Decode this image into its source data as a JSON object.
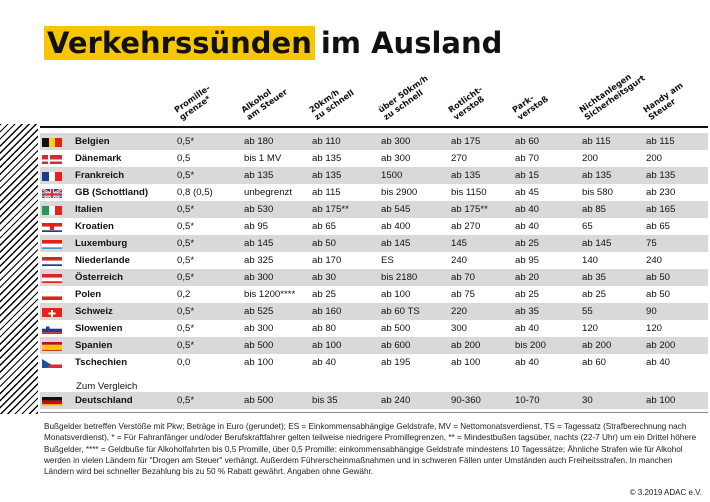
{
  "title": {
    "highlight": "Verkehrssünden",
    "rest": "im Ausland"
  },
  "columns": [
    "Promille-\ngrenze*",
    "Alkohol\nam Steuer",
    "20km/h\nzu schnell",
    "über 50km/h\nzu schnell",
    "Rotlicht-\nverstoß",
    "Park-\nverstoß",
    "Nichtanlegen\nSicherheitsgurt",
    "Handy am\nSteuer"
  ],
  "rows": [
    {
      "country": "Belgien",
      "flag": "be",
      "values": [
        "0,5*",
        "ab 180",
        "ab 110",
        "ab 300",
        "ab 175",
        "ab 60",
        "ab 115",
        "ab 115"
      ]
    },
    {
      "country": "Dänemark",
      "flag": "dk",
      "values": [
        "0,5",
        "bis 1 MV",
        "ab 135",
        "ab 300",
        "270",
        "ab 70",
        "200",
        "200"
      ]
    },
    {
      "country": "Frankreich",
      "flag": "fr",
      "values": [
        "0,5*",
        "ab 135",
        "ab 135",
        "1500",
        "ab 135",
        "ab 15",
        "ab 135",
        "ab 135"
      ]
    },
    {
      "country": "GB (Schottland)",
      "flag": "gb",
      "values": [
        "0,8 (0,5)",
        "unbegrenzt",
        "ab 115",
        "bis 2900",
        "bis 1150",
        "ab 45",
        "bis 580",
        "ab 230"
      ]
    },
    {
      "country": "Italien",
      "flag": "it",
      "values": [
        "0,5*",
        "ab 530",
        "ab 175**",
        "ab 545",
        "ab 175**",
        "ab 40",
        "ab 85",
        "ab 165"
      ]
    },
    {
      "country": "Kroatien",
      "flag": "hr",
      "values": [
        "0,5*",
        "ab 95",
        "ab 65",
        "ab 400",
        "ab 270",
        "ab 40",
        "65",
        "ab 65"
      ]
    },
    {
      "country": "Luxemburg",
      "flag": "lu",
      "values": [
        "0,5*",
        "ab 145",
        "ab 50",
        "ab 145",
        "145",
        "ab 25",
        "ab 145",
        "75"
      ]
    },
    {
      "country": "Niederlande",
      "flag": "nl",
      "values": [
        "0,5*",
        "ab 325",
        "ab 170",
        "ES",
        "240",
        "ab 95",
        "140",
        "240"
      ]
    },
    {
      "country": "Österreich",
      "flag": "at",
      "values": [
        "0,5*",
        "ab 300",
        "ab 30",
        "bis 2180",
        "ab 70",
        "ab 20",
        "ab 35",
        "ab 50"
      ]
    },
    {
      "country": "Polen",
      "flag": "pl",
      "values": [
        "0,2",
        "bis 1200****",
        "ab 25",
        "ab 100",
        "ab 75",
        "ab 25",
        "ab 25",
        "ab 50"
      ]
    },
    {
      "country": "Schweiz",
      "flag": "ch",
      "values": [
        "0,5*",
        "ab 525",
        "ab 160",
        "ab 60 TS",
        "220",
        "ab 35",
        "55",
        "90"
      ]
    },
    {
      "country": "Slowenien",
      "flag": "si",
      "values": [
        "0,5*",
        "ab 300",
        "ab 80",
        "ab 500",
        "300",
        "ab 40",
        "120",
        "120"
      ]
    },
    {
      "country": "Spanien",
      "flag": "es",
      "values": [
        "0,5*",
        "ab 500",
        "ab 100",
        "ab 600",
        "ab 200",
        "bis 200",
        "ab 200",
        "ab 200"
      ]
    },
    {
      "country": "Tschechien",
      "flag": "cz",
      "values": [
        "0,0",
        "ab 100",
        "ab 40",
        "ab 195",
        "ab 100",
        "ab 40",
        "ab 60",
        "ab 40"
      ]
    }
  ],
  "comparison_label": "Zum Vergleich",
  "comparison_row": {
    "country": "Deutschland",
    "flag": "de",
    "values": [
      "0,5*",
      "ab 500",
      "bis 35",
      "ab 240",
      "90-360",
      "10-70",
      "30",
      "ab 100"
    ]
  },
  "footnote": "Bußgelder betreffen Verstöße mit Pkw; Beträge in Euro (gerundet); ES = Einkommensabhängige Geldstrafe, MV = Nettomonatsverdienst, TS = Tagessatz (Strafberechnung nach Monatsverdienst), * = Für Fahranfänger und/oder Berufskraftfahrer gelten teilweise niedrigere Promillegrenzen, ** = Mindestbußen tagsüber, nachts (22-7 Uhr) um ein Drittel höhere Bußgelder, **** = Geldbuße für Alkoholfahrten bis 0,5 Promille, über 0,5 Promille: einkommensabhängige Geldstrafe mindestens 10 Tagessätze; Ähnliche Strafen wie für Alkohol werden in vielen Ländern für \"Drogen am Steuer\" verhängt. Außerdem Führerscheinmaßnahmen und in schweren Fällen unter Umständen auch Freiheitsstrafen. In manchen Ländern wird bei schneller Bezahlung bis zu 50 % Rabatt gewährt. Angaben ohne Gewähr.",
  "copyright": "© 3.2019 ADAC e.V."
}
